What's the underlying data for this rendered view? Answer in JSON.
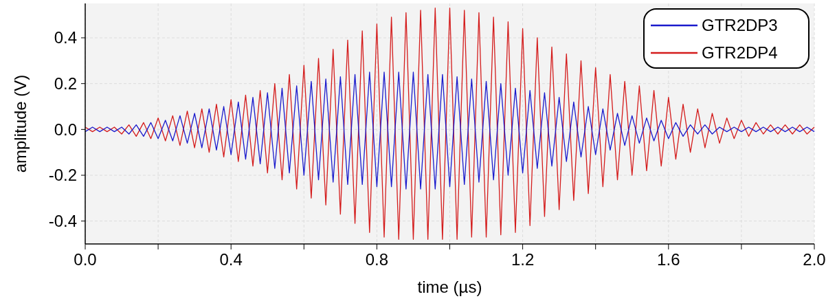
{
  "chart_data": {
    "type": "line",
    "xlabel": "time (µs)",
    "ylabel": "amplitude (V)",
    "x": [
      0,
      0.02,
      0.04,
      0.06,
      0.08,
      0.1,
      0.12,
      0.14,
      0.16,
      0.18,
      0.2,
      0.22,
      0.24,
      0.26,
      0.28,
      0.3,
      0.32,
      0.34,
      0.36,
      0.38,
      0.4,
      0.42,
      0.44,
      0.46,
      0.48,
      0.5,
      0.52,
      0.54,
      0.56,
      0.58,
      0.6,
      0.62,
      0.64,
      0.66,
      0.68,
      0.7,
      0.72,
      0.74,
      0.76,
      0.78,
      0.8,
      0.82,
      0.84,
      0.86,
      0.88,
      0.9,
      0.92,
      0.94,
      0.96,
      0.98,
      1,
      1.02,
      1.04,
      1.06,
      1.08,
      1.1,
      1.12,
      1.14,
      1.16,
      1.18,
      1.2,
      1.22,
      1.24,
      1.26,
      1.28,
      1.3,
      1.32,
      1.34,
      1.36,
      1.38,
      1.4,
      1.42,
      1.44,
      1.46,
      1.48,
      1.5,
      1.52,
      1.54,
      1.56,
      1.58,
      1.6,
      1.62,
      1.64,
      1.66,
      1.68,
      1.7,
      1.72,
      1.74,
      1.76,
      1.78,
      1.8,
      1.82,
      1.84,
      1.86,
      1.88,
      1.9,
      1.92,
      1.94,
      1.96,
      1.98,
      2
    ],
    "series": [
      {
        "name": "GTR2DP3",
        "color": "#1a1acc",
        "values": [
          -0.01,
          0.01,
          -0.01,
          0.01,
          -0.01,
          0.01,
          -0.02,
          0.02,
          -0.03,
          0.03,
          -0.04,
          0.04,
          -0.05,
          0.06,
          -0.06,
          0.07,
          -0.08,
          0.09,
          -0.09,
          0.1,
          -0.11,
          0.12,
          -0.13,
          0.14,
          -0.15,
          0.16,
          -0.17,
          0.18,
          -0.19,
          0.19,
          -0.2,
          0.21,
          -0.22,
          0.22,
          -0.23,
          0.23,
          -0.24,
          0.24,
          -0.24,
          0.25,
          -0.25,
          0.25,
          -0.25,
          0.25,
          -0.26,
          0.25,
          -0.26,
          0.24,
          -0.26,
          0.24,
          -0.25,
          0.23,
          -0.24,
          0.22,
          -0.23,
          0.21,
          -0.22,
          0.2,
          -0.2,
          0.18,
          -0.19,
          0.17,
          -0.17,
          0.16,
          -0.16,
          0.14,
          -0.14,
          0.12,
          -0.12,
          0.1,
          -0.11,
          0.09,
          -0.09,
          0.07,
          -0.07,
          0.06,
          -0.06,
          0.05,
          -0.05,
          0.04,
          -0.04,
          0.03,
          -0.03,
          0.02,
          -0.02,
          0.02,
          -0.02,
          0.01,
          -0.01,
          0.01,
          -0.01,
          0.01,
          -0.01,
          0.01,
          -0.01,
          0.01,
          -0.01,
          0.01,
          -0.01,
          0.01,
          -0.01
        ]
      },
      {
        "name": "GTR2DP4",
        "color": "#d41c1c",
        "values": [
          0.01,
          -0.01,
          0.01,
          -0.01,
          0.01,
          -0.02,
          0.02,
          -0.03,
          0.03,
          -0.04,
          0.05,
          -0.05,
          0.06,
          -0.07,
          0.08,
          -0.08,
          0.09,
          -0.1,
          0.11,
          -0.12,
          0.13,
          -0.14,
          0.15,
          -0.16,
          0.17,
          -0.19,
          0.2,
          -0.22,
          0.24,
          -0.26,
          0.28,
          -0.3,
          0.31,
          -0.33,
          0.35,
          -0.37,
          0.39,
          -0.41,
          0.43,
          -0.45,
          0.46,
          -0.47,
          0.49,
          -0.48,
          0.51,
          -0.48,
          0.52,
          -0.48,
          0.53,
          -0.48,
          0.53,
          -0.48,
          0.52,
          -0.47,
          0.51,
          -0.47,
          0.49,
          -0.46,
          0.47,
          -0.45,
          0.44,
          -0.42,
          0.4,
          -0.38,
          0.36,
          -0.35,
          0.33,
          -0.31,
          0.3,
          -0.28,
          0.27,
          -0.25,
          0.24,
          -0.22,
          0.21,
          -0.2,
          0.19,
          -0.18,
          0.17,
          -0.16,
          0.14,
          -0.13,
          0.11,
          -0.1,
          0.09,
          -0.08,
          0.07,
          -0.06,
          0.05,
          -0.04,
          0.04,
          -0.03,
          0.03,
          -0.02,
          0.02,
          -0.02,
          0.02,
          -0.02,
          0.02,
          -0.02,
          0.01
        ]
      }
    ],
    "xlim": [
      0,
      2
    ],
    "xticks": [
      {
        "value": 0,
        "label": "0.0"
      },
      {
        "value": 0.2,
        "label": null
      },
      0.4,
      {
        "value": 0.6,
        "label": null
      },
      0.8,
      {
        "value": 1.0,
        "label": null
      },
      1.2,
      {
        "value": 1.4,
        "label": null
      },
      1.6,
      {
        "value": 1.8,
        "label": null
      },
      {
        "value": 2,
        "label": "2.0"
      }
    ],
    "ylim": [
      -0.5,
      0.55
    ],
    "yticks": [
      -0.4,
      -0.2,
      {
        "value": 0,
        "label": "0.0"
      },
      0.2,
      0.4
    ],
    "grid": true,
    "legend": "top right",
    "marker": "none",
    "line_style": "solid"
  }
}
